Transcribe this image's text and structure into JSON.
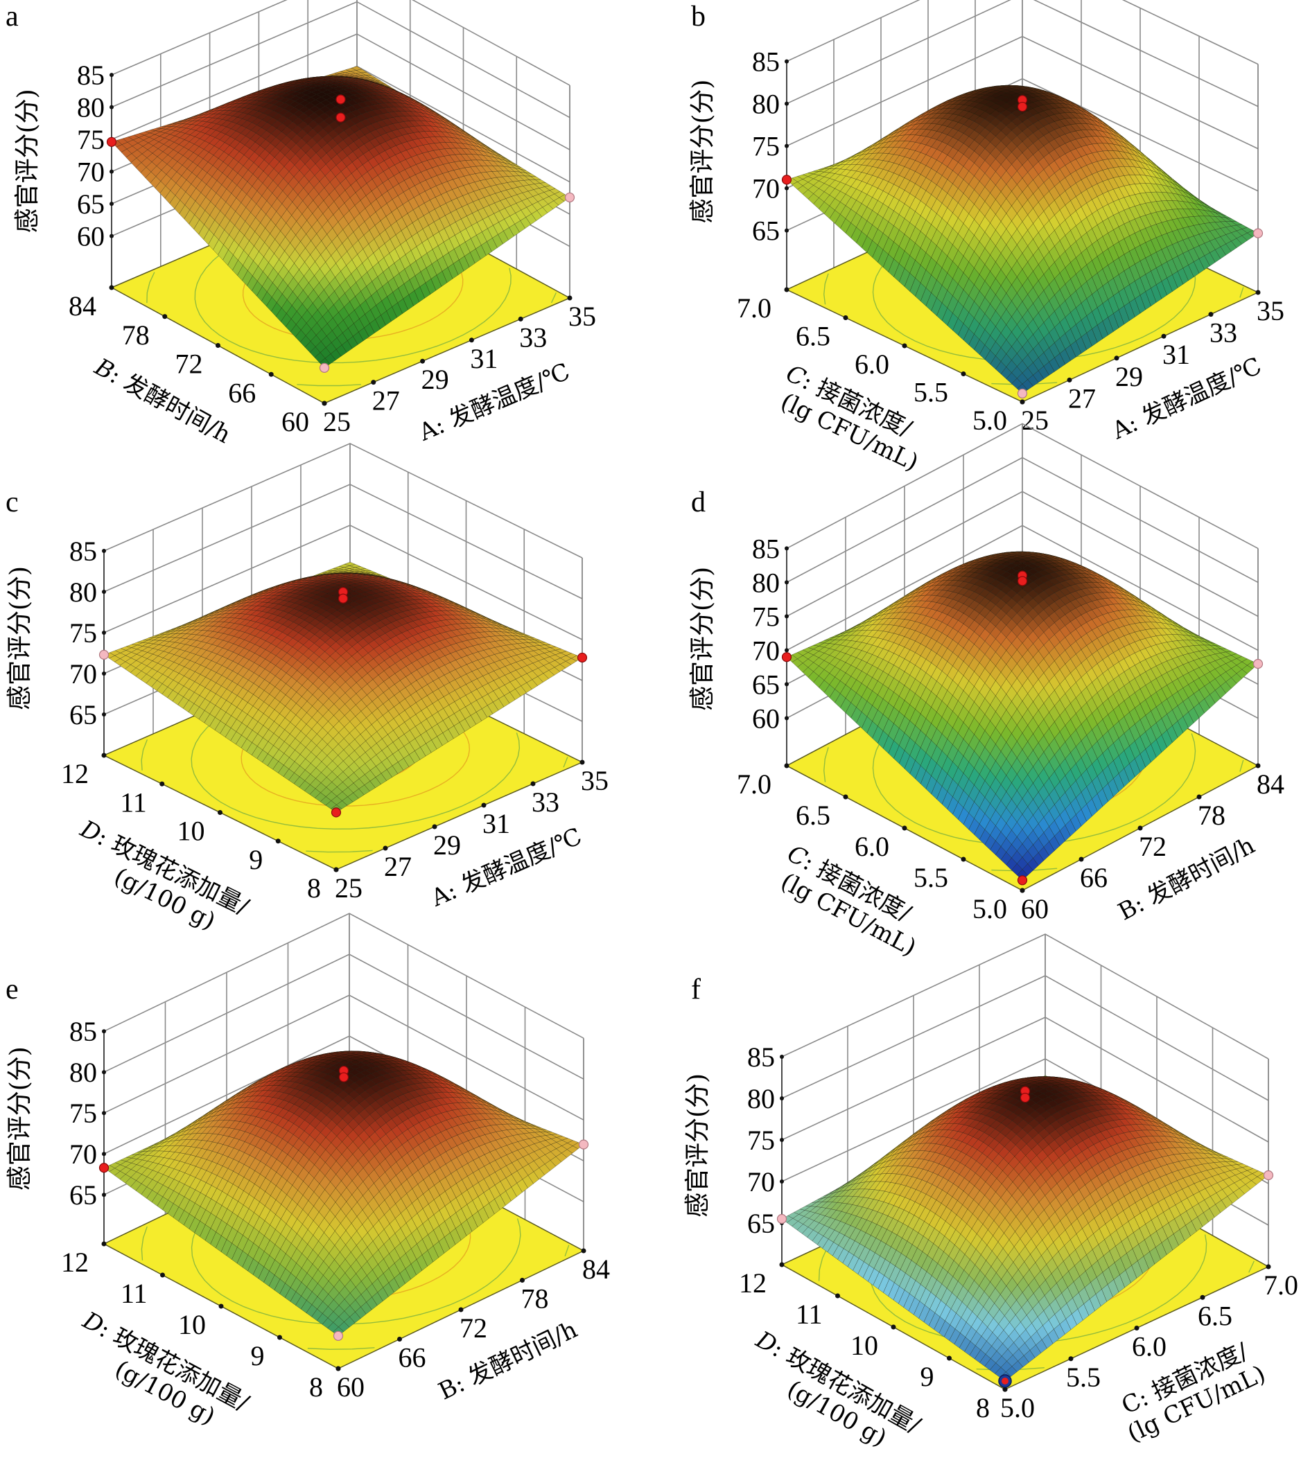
{
  "figure": {
    "panels": [
      "a",
      "b",
      "c",
      "d",
      "e",
      "f"
    ]
  },
  "chart_data": [
    {
      "panel": "a",
      "type": "surface",
      "zlabel": "感官评分(分)",
      "zticks": [
        "85",
        "80",
        "75",
        "70",
        "65",
        "60"
      ],
      "zlim": [
        52,
        85
      ],
      "factor_x": {
        "label_prefix": "A",
        "label": ": 发酵温度/℃",
        "italic": false,
        "ticks": [
          "25",
          "27",
          "29",
          "31",
          "33",
          "35"
        ],
        "range": [
          25,
          35
        ]
      },
      "factor_y": {
        "label_prefix": "B",
        "label": ": 发酵时间/h",
        "label2": "",
        "italic": true,
        "ticks": [
          "60",
          "66",
          "72",
          "78",
          "84"
        ],
        "range": [
          60,
          84
        ]
      },
      "surface": {
        "center": 80.3,
        "corner_front": 57.5,
        "corner_left": 74.6,
        "corner_right": 67.6,
        "corner_back": 70.0
      },
      "design_points": [
        {
          "pos": "center",
          "z": 82.0,
          "color": "red"
        },
        {
          "pos": "center",
          "z": 79.2,
          "color": "red"
        },
        {
          "pos": "left",
          "z": 74.6,
          "color": "red"
        },
        {
          "pos": "right",
          "z": 67.6,
          "color": "pink"
        },
        {
          "pos": "front",
          "z": 57.5,
          "color": "pink"
        }
      ],
      "colors": [
        "#1a7a2a",
        "#3c9a2c",
        "#c8d23a",
        "#d08a30",
        "#b83a1e",
        "#1a0a05"
      ]
    },
    {
      "panel": "b",
      "type": "surface",
      "zlabel": "感官评分(分)",
      "zticks": [
        "85",
        "80",
        "75",
        "70",
        "65"
      ],
      "zlim": [
        58,
        85
      ],
      "factor_x": {
        "label_prefix": "A",
        "label": ": 发酵温度/℃",
        "italic": false,
        "ticks": [
          "25",
          "27",
          "29",
          "31",
          "33",
          "35"
        ],
        "range": [
          25,
          35
        ]
      },
      "factor_y": {
        "label_prefix": "C",
        "label": ": 接菌浓度/",
        "label2": "(lg CFU/mL)",
        "italic": true,
        "ticks": [
          "5.0",
          "5.5",
          "6.0",
          "6.5",
          "7.0"
        ],
        "range": [
          5.0,
          7.0
        ]
      },
      "surface": {
        "center": 79.8,
        "corner_front": 59.0,
        "corner_left": 71.0,
        "corner_right": 65.0,
        "corner_back": 67.0
      },
      "design_points": [
        {
          "pos": "center",
          "z": 80.6,
          "color": "red"
        },
        {
          "pos": "center",
          "z": 79.8,
          "color": "red"
        },
        {
          "pos": "left",
          "z": 71.0,
          "color": "red"
        },
        {
          "pos": "right",
          "z": 65.0,
          "color": "pink"
        },
        {
          "pos": "front",
          "z": 59.0,
          "color": "pink"
        }
      ],
      "colors": [
        "#1a5a8a",
        "#2a9a6a",
        "#6ab02c",
        "#d6d030",
        "#c86a28",
        "#1a0a05"
      ]
    },
    {
      "panel": "c",
      "type": "surface",
      "zlabel": "感官评分(分)",
      "zticks": [
        "85",
        "80",
        "75",
        "70",
        "65"
      ],
      "zlim": [
        60,
        85
      ],
      "factor_x": {
        "label_prefix": "A",
        "label": ": 发酵温度/℃",
        "italic": false,
        "ticks": [
          "25",
          "27",
          "29",
          "31",
          "33",
          "35"
        ],
        "range": [
          25,
          35
        ]
      },
      "factor_y": {
        "label_prefix": "D",
        "label": ": 玫瑰花添加量/",
        "label2": "(g/100 g)",
        "italic": true,
        "ticks": [
          "8",
          "9",
          "10",
          "11",
          "12"
        ],
        "range": [
          8,
          12
        ]
      },
      "surface": {
        "center": 79.3,
        "corner_front": 67.0,
        "corner_left": 72.3,
        "corner_right": 72.8,
        "corner_back": 70.5
      },
      "design_points": [
        {
          "pos": "center",
          "z": 80.4,
          "color": "red"
        },
        {
          "pos": "center",
          "z": 79.6,
          "color": "red"
        },
        {
          "pos": "left",
          "z": 72.3,
          "color": "pink"
        },
        {
          "pos": "right",
          "z": 72.8,
          "color": "red"
        },
        {
          "pos": "front",
          "z": 67.0,
          "color": "red"
        }
      ],
      "colors": [
        "#6aa83a",
        "#b8c83a",
        "#d6c030",
        "#d08a30",
        "#b83a1e",
        "#1a0a05"
      ]
    },
    {
      "panel": "d",
      "type": "surface",
      "zlabel": "感官评分(分)",
      "zticks": [
        "85",
        "80",
        "75",
        "70",
        "65",
        "60"
      ],
      "zlim": [
        53,
        85
      ],
      "factor_x": {
        "label_prefix": "B",
        "label": ": 发酵时间/h",
        "italic": false,
        "ticks": [
          "60",
          "66",
          "72",
          "78",
          "84"
        ],
        "range": [
          60,
          84
        ]
      },
      "factor_y": {
        "label_prefix": "C",
        "label": ": 接菌浓度/",
        "label2": "(lg CFU/mL)",
        "italic": true,
        "ticks": [
          "5.0",
          "5.5",
          "6.0",
          "6.5",
          "7.0"
        ],
        "range": [
          5.0,
          7.0
        ]
      },
      "surface": {
        "center": 80.2,
        "corner_front": 54.5,
        "corner_left": 69.0,
        "corner_right": 68.0,
        "corner_back": 66.0
      },
      "design_points": [
        {
          "pos": "center",
          "z": 81.0,
          "color": "red"
        },
        {
          "pos": "center",
          "z": 80.2,
          "color": "red"
        },
        {
          "pos": "left",
          "z": 69.0,
          "color": "red"
        },
        {
          "pos": "right",
          "z": 68.0,
          "color": "pink"
        },
        {
          "pos": "front",
          "z": 54.5,
          "color": "red"
        }
      ],
      "colors": [
        "#1a2a9a",
        "#2a8ad0",
        "#2aa87a",
        "#7ab82c",
        "#d6c830",
        "#c86a28",
        "#1a0a05"
      ]
    },
    {
      "panel": "e",
      "type": "surface",
      "zlabel": "感官评分(分)",
      "zticks": [
        "85",
        "80",
        "75",
        "70",
        "65"
      ],
      "zlim": [
        59,
        85
      ],
      "factor_x": {
        "label_prefix": "B",
        "label": ": 发酵时间/h",
        "italic": false,
        "ticks": [
          "60",
          "66",
          "72",
          "78",
          "84"
        ],
        "range": [
          60,
          84
        ]
      },
      "factor_y": {
        "label_prefix": "D",
        "label": ": 玫瑰花添加量/",
        "label2": "(g/100 g)",
        "italic": true,
        "ticks": [
          "8",
          "9",
          "10",
          "11",
          "12"
        ],
        "range": [
          8,
          12
        ]
      },
      "surface": {
        "center": 80.0,
        "corner_front": 63.0,
        "corner_left": 68.3,
        "corner_right": 72.0,
        "corner_back": 68.0
      },
      "design_points": [
        {
          "pos": "center",
          "z": 80.6,
          "color": "red"
        },
        {
          "pos": "center",
          "z": 79.8,
          "color": "red"
        },
        {
          "pos": "left",
          "z": 68.3,
          "color": "red"
        },
        {
          "pos": "right",
          "z": 72.0,
          "color": "pink"
        },
        {
          "pos": "front",
          "z": 63.0,
          "color": "pink"
        }
      ],
      "colors": [
        "#3a9a6a",
        "#8ab83a",
        "#d6c830",
        "#d08a30",
        "#b83a1e",
        "#1a0a05"
      ]
    },
    {
      "panel": "f",
      "type": "surface",
      "zlabel": "感官评分(分)",
      "zticks": [
        "85",
        "80",
        "75",
        "70",
        "65"
      ],
      "zlim": [
        60,
        85
      ],
      "factor_x": {
        "label_prefix": "C",
        "label": ": 接菌浓度/",
        "label2": "(lg CFU/mL)",
        "italic": false,
        "ticks": [
          "5.0",
          "5.5",
          "6.0",
          "6.5",
          "7.0"
        ],
        "range": [
          5.0,
          7.0
        ]
      },
      "factor_y": {
        "label_prefix": "D",
        "label": ": 玫瑰花添加量/",
        "label2": "(g/100 g)",
        "italic": true,
        "ticks": [
          "8",
          "9",
          "10",
          "11",
          "12"
        ],
        "range": [
          8,
          12
        ]
      },
      "surface": {
        "center": 79.5,
        "corner_front": 61.0,
        "corner_left": 65.5,
        "corner_right": 71.0,
        "corner_back": 68.0
      },
      "design_points": [
        {
          "pos": "center",
          "z": 81.0,
          "color": "red"
        },
        {
          "pos": "center",
          "z": 80.2,
          "color": "red"
        },
        {
          "pos": "left",
          "z": 65.5,
          "color": "pink"
        },
        {
          "pos": "right",
          "z": 71.0,
          "color": "pink"
        },
        {
          "pos": "front",
          "z": 61.0,
          "color": "blue"
        }
      ],
      "colors": [
        "#2a6ab0",
        "#7ac8e0",
        "#8ab85a",
        "#d6c830",
        "#d08a30",
        "#b83a1e",
        "#1a0a05"
      ]
    }
  ]
}
